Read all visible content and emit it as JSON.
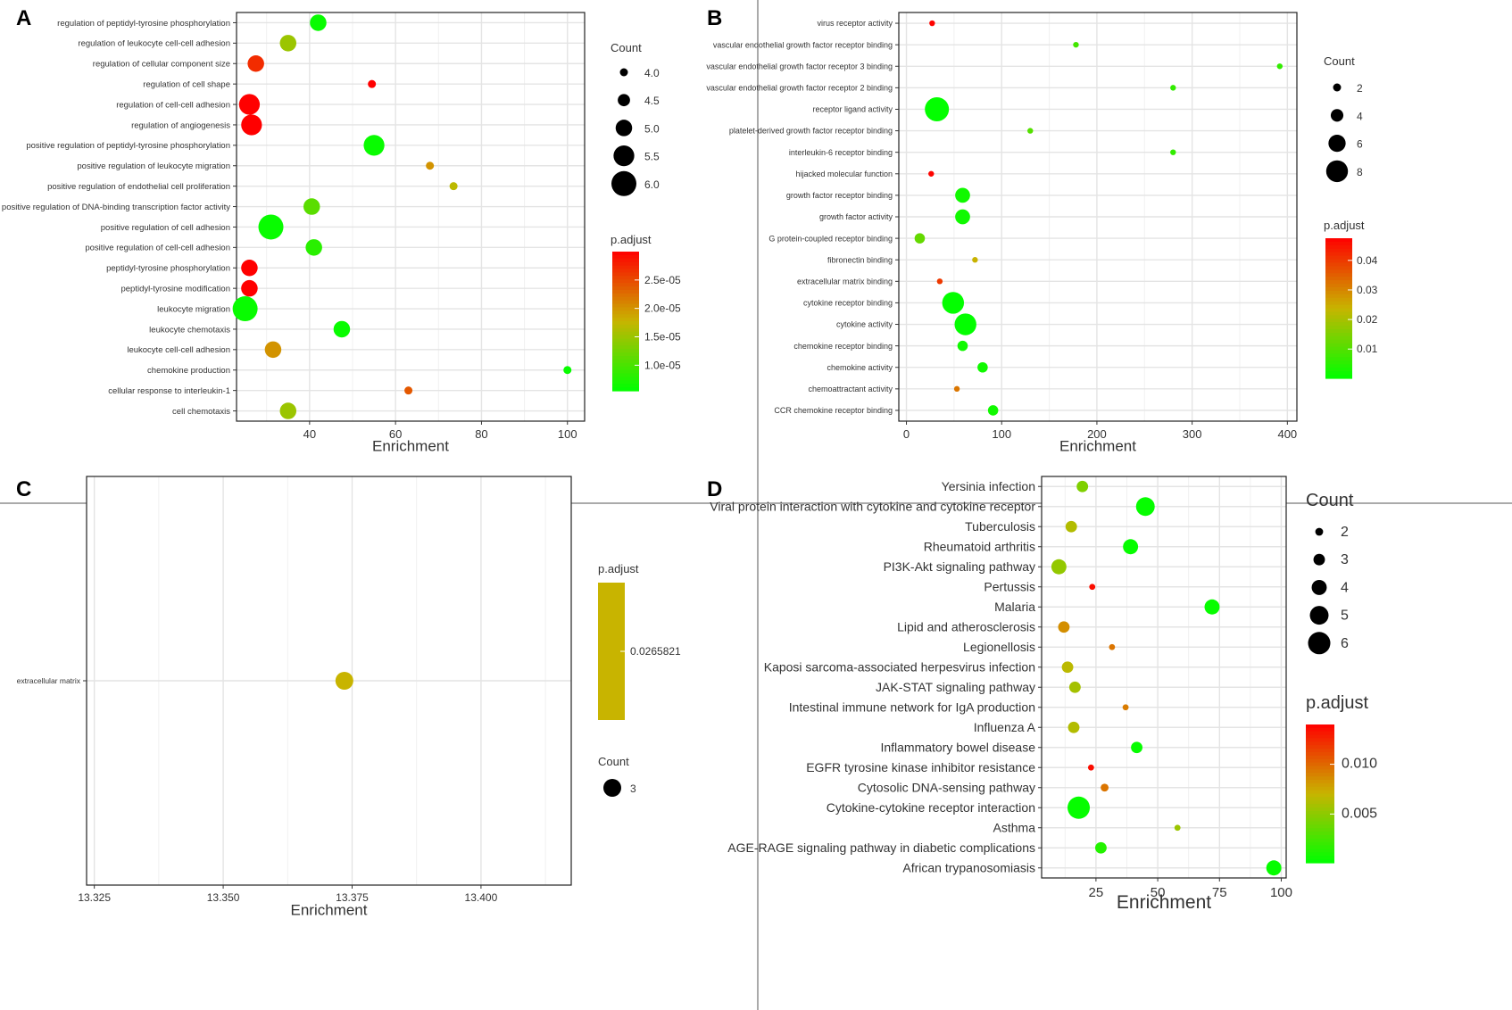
{
  "colors": {
    "low": "#00ff00",
    "mid": "#c8b400",
    "high": "#ff0000"
  },
  "chart_data": [
    {
      "panel": "A",
      "type": "scatter",
      "xlabel": "Enrichment",
      "xlim": [
        23,
        104
      ],
      "xticks": [
        40,
        60,
        80,
        100
      ],
      "categories": [
        "regulation of peptidyl-tyrosine phosphorylation",
        "regulation of leukocyte cell-cell adhesion",
        "regulation of cellular component size",
        "regulation of cell shape",
        "regulation of cell-cell adhesion",
        "regulation of angiogenesis",
        "positive regulation of peptidyl-tyrosine phosphorylation",
        "positive regulation of leukocyte migration",
        "positive regulation of endothelial cell proliferation",
        "positive regulation of DNA-binding transcription factor activity",
        "positive regulation of cell adhesion",
        "positive regulation of cell-cell adhesion",
        "peptidyl-tyrosine phosphorylation",
        "peptidyl-tyrosine modification",
        "leukocyte migration",
        "leukocyte chemotaxis",
        "leukocyte cell-cell adhesion",
        "chemokine production",
        "cellular response to interleukin-1",
        "cell chemotaxis"
      ],
      "points": [
        {
          "x": 42,
          "count": 5,
          "p": 6e-06
        },
        {
          "x": 35,
          "count": 5,
          "p": 1.5e-05
        },
        {
          "x": 27.5,
          "count": 5,
          "p": 2.7e-05
        },
        {
          "x": 54.5,
          "count": 4,
          "p": 3e-05
        },
        {
          "x": 26,
          "count": 5.5,
          "p": 3e-05
        },
        {
          "x": 26.5,
          "count": 5.5,
          "p": 3e-05
        },
        {
          "x": 55,
          "count": 5.5,
          "p": 6e-06
        },
        {
          "x": 68,
          "count": 4,
          "p": 2e-05
        },
        {
          "x": 73.5,
          "count": 4,
          "p": 1.7e-05
        },
        {
          "x": 40.5,
          "count": 5,
          "p": 1.1e-05
        },
        {
          "x": 31,
          "count": 6,
          "p": 6e-06
        },
        {
          "x": 41,
          "count": 5,
          "p": 8e-06
        },
        {
          "x": 26,
          "count": 5,
          "p": 3e-05
        },
        {
          "x": 26,
          "count": 5,
          "p": 3e-05
        },
        {
          "x": 25,
          "count": 6,
          "p": 6e-06
        },
        {
          "x": 47.5,
          "count": 5,
          "p": 6e-06
        },
        {
          "x": 31.5,
          "count": 5,
          "p": 2e-05
        },
        {
          "x": 100,
          "count": 4,
          "p": 6e-06
        },
        {
          "x": 63,
          "count": 4,
          "p": 2.4e-05
        },
        {
          "x": 35,
          "count": 5,
          "p": 1.5e-05
        }
      ],
      "size_legend": {
        "title": "Count",
        "values": [
          4.0,
          4.5,
          5.0,
          5.5,
          6.0
        ],
        "labels": [
          "4.0",
          "4.5",
          "5.0",
          "5.5",
          "6.0"
        ],
        "min": 4,
        "max": 6,
        "rmin": 4.5,
        "rmax": 14
      },
      "color_legend": {
        "title": "p.adjust",
        "min": 5.5e-06,
        "max": 3e-05,
        "ticks": [
          2.5e-05,
          2e-05,
          1.5e-05,
          1e-05
        ],
        "labels": [
          "2.5e-05",
          "2.0e-05",
          "1.5e-05",
          "1.0e-05"
        ]
      }
    },
    {
      "panel": "B",
      "type": "scatter",
      "xlabel": "Enrichment",
      "xlim": [
        -8,
        410
      ],
      "xticks": [
        0,
        100,
        200,
        300,
        400
      ],
      "categories": [
        "virus receptor activity",
        "vascular endothelial growth factor receptor binding",
        "vascular endothelial growth factor receptor 3 binding",
        "vascular endothelial growth factor receptor 2 binding",
        "receptor ligand activity",
        "platelet-derived growth factor receptor binding",
        "interleukin-6 receptor binding",
        "hijacked molecular function",
        "growth factor receptor binding",
        "growth factor activity",
        "G protein-coupled receptor binding",
        "fibronectin binding",
        "extracellular matrix binding",
        "cytokine receptor binding",
        "cytokine activity",
        "chemokine receptor binding",
        "chemokine activity",
        "chemoattractant activity",
        "CCR chemokine receptor binding"
      ],
      "points": [
        {
          "x": 27,
          "count": 1,
          "p": 0.047
        },
        {
          "x": 178,
          "count": 1,
          "p": 0.008
        },
        {
          "x": 392,
          "count": 1,
          "p": 0.006
        },
        {
          "x": 280,
          "count": 1,
          "p": 0.006
        },
        {
          "x": 32,
          "count": 9,
          "p": 0.0005
        },
        {
          "x": 130,
          "count": 1,
          "p": 0.01
        },
        {
          "x": 280,
          "count": 1,
          "p": 0.006
        },
        {
          "x": 26,
          "count": 1,
          "p": 0.047
        },
        {
          "x": 59,
          "count": 5,
          "p": 0.002
        },
        {
          "x": 59,
          "count": 5,
          "p": 0.002
        },
        {
          "x": 14,
          "count": 3,
          "p": 0.012
        },
        {
          "x": 72,
          "count": 1,
          "p": 0.024
        },
        {
          "x": 35,
          "count": 1,
          "p": 0.04
        },
        {
          "x": 49,
          "count": 8,
          "p": 0.0005
        },
        {
          "x": 62,
          "count": 8,
          "p": 0.0005
        },
        {
          "x": 59,
          "count": 3,
          "p": 0.002
        },
        {
          "x": 80,
          "count": 3,
          "p": 0.002
        },
        {
          "x": 53,
          "count": 1,
          "p": 0.032
        },
        {
          "x": 91,
          "count": 3,
          "p": 0.002
        }
      ],
      "size_legend": {
        "title": "Count",
        "values": [
          2,
          4,
          6,
          8
        ],
        "labels": [
          "2",
          "4",
          "6",
          "8"
        ],
        "min": 1,
        "max": 9,
        "rmin": 3.2,
        "rmax": 13.5
      },
      "color_legend": {
        "title": "p.adjust",
        "min": 0.0001,
        "max": 0.0475,
        "ticks": [
          0.04,
          0.03,
          0.02,
          0.01
        ],
        "labels": [
          "0.04",
          "0.03",
          "0.02",
          "0.01"
        ]
      }
    },
    {
      "panel": "C",
      "type": "scatter",
      "xlabel": "Enrichment",
      "xlim": [
        13.3235,
        13.4175
      ],
      "xticks": [
        13.325,
        13.35,
        13.375,
        13.4
      ],
      "xtick_labels": [
        "13.325",
        "13.350",
        "13.375",
        "13.400"
      ],
      "categories": [
        "extracellular matrix"
      ],
      "points": [
        {
          "x": 13.3735,
          "count": 3,
          "p": 0.0265821
        }
      ],
      "size_legend": {
        "title": "Count",
        "values": [
          3
        ],
        "labels": [
          "3"
        ],
        "min": 3,
        "max": 3,
        "rmin": 10,
        "rmax": 10
      },
      "color_legend": {
        "title": "p.adjust",
        "labels": [
          "0.0265821"
        ],
        "single": true
      }
    },
    {
      "panel": "D",
      "type": "scatter",
      "xlabel": "Enrichment",
      "xlim": [
        3,
        102
      ],
      "xticks": [
        25,
        50,
        75,
        100
      ],
      "categories": [
        "Yersinia infection",
        "Viral protein interaction with cytokine and cytokine receptor",
        "Tuberculosis",
        "Rheumatoid arthritis",
        "PI3K-Akt signaling pathway",
        "Pertussis",
        "Malaria",
        "Lipid and atherosclerosis",
        "Legionellosis",
        "Kaposi sarcoma-associated herpesvirus infection",
        "JAK-STAT signaling pathway",
        "Intestinal immune network for IgA production",
        "Influenza A",
        "Inflammatory bowel disease",
        "EGFR tyrosine kinase inhibitor resistance",
        "Cytosolic DNA-sensing pathway",
        "Cytokine-cytokine receptor interaction",
        "Asthma",
        "AGE-RAGE signaling pathway in diabetic complications",
        "African trypanosomiasis"
      ],
      "points": [
        {
          "x": 19.5,
          "count": 3,
          "p": 0.0045
        },
        {
          "x": 45,
          "count": 5,
          "p": 0.0003
        },
        {
          "x": 15,
          "count": 3,
          "p": 0.0063
        },
        {
          "x": 39,
          "count": 4,
          "p": 0.0003
        },
        {
          "x": 10,
          "count": 4,
          "p": 0.0052
        },
        {
          "x": 23.5,
          "count": 1.5,
          "p": 0.0135
        },
        {
          "x": 72,
          "count": 4,
          "p": 0.0003
        },
        {
          "x": 12,
          "count": 3,
          "p": 0.0085
        },
        {
          "x": 31.5,
          "count": 1.5,
          "p": 0.0095
        },
        {
          "x": 13.5,
          "count": 3,
          "p": 0.0066
        },
        {
          "x": 16.5,
          "count": 3,
          "p": 0.0058
        },
        {
          "x": 37,
          "count": 1.5,
          "p": 0.0092
        },
        {
          "x": 16,
          "count": 3,
          "p": 0.0063
        },
        {
          "x": 41.5,
          "count": 3,
          "p": 0.0003
        },
        {
          "x": 23,
          "count": 1.5,
          "p": 0.0135
        },
        {
          "x": 28.5,
          "count": 2,
          "p": 0.0095
        },
        {
          "x": 18,
          "count": 6,
          "p": 0.0003
        },
        {
          "x": 58,
          "count": 1.5,
          "p": 0.0055
        },
        {
          "x": 27,
          "count": 3,
          "p": 0.0013
        },
        {
          "x": 97,
          "count": 4,
          "p": 0.0003
        }
      ],
      "size_legend": {
        "title": "Count",
        "values": [
          2,
          3,
          4,
          5,
          6
        ],
        "labels": [
          "2",
          "3",
          "4",
          "5",
          "6"
        ],
        "min": 1.5,
        "max": 6,
        "rmin": 3.4,
        "rmax": 12.5
      },
      "color_legend": {
        "title": "p.adjust",
        "min": 0.0001,
        "max": 0.014,
        "ticks": [
          0.01,
          0.005
        ],
        "labels": [
          "0.010",
          "0.005"
        ]
      }
    }
  ]
}
